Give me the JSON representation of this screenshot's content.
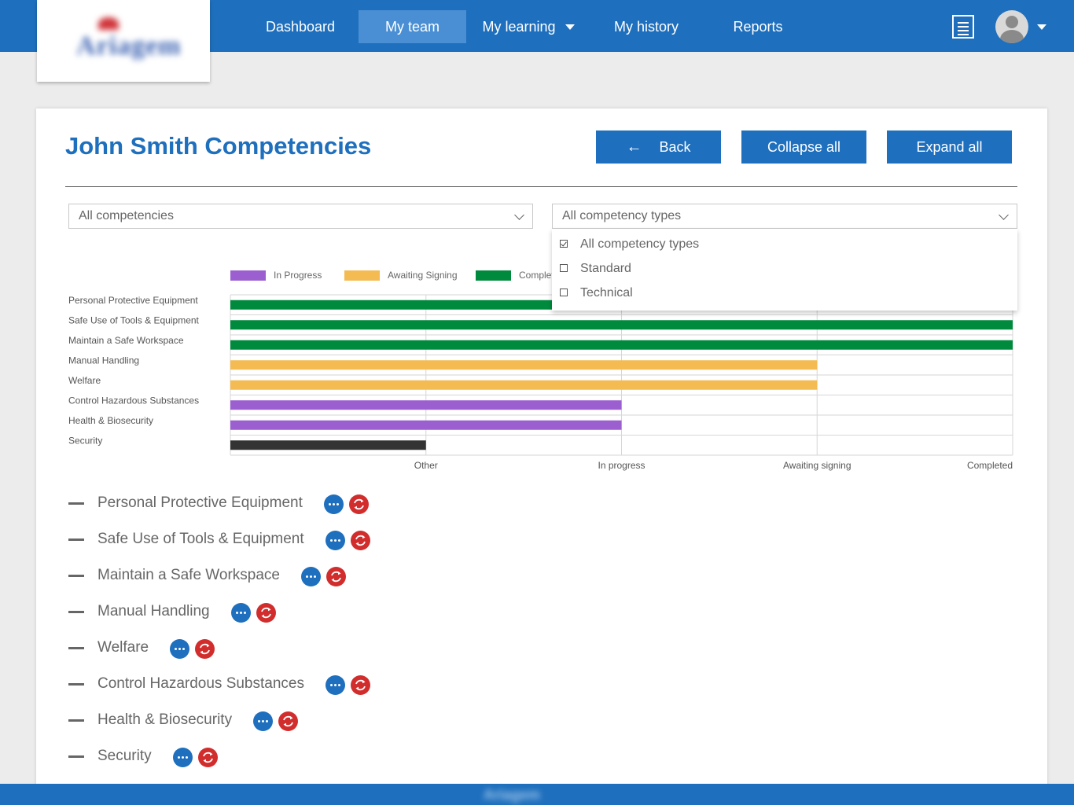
{
  "logo": {
    "brand": "Ariagem"
  },
  "nav": {
    "items": [
      {
        "label": "Dashboard"
      },
      {
        "label": "My team"
      },
      {
        "label": "My learning"
      },
      {
        "label": "My history"
      },
      {
        "label": "Reports"
      }
    ],
    "active": "My team"
  },
  "header": {
    "title": "John Smith Competencies",
    "back_label": "Back",
    "collapse_label": "Collapse all",
    "expand_label": "Expand all"
  },
  "filters": {
    "competencies": {
      "value": "All competencies"
    },
    "types": {
      "value": "All competency types",
      "options": [
        {
          "label": "All competency types",
          "checked": true
        },
        {
          "label": "Standard",
          "checked": false
        },
        {
          "label": "Technical",
          "checked": false
        }
      ]
    }
  },
  "chart_data": {
    "type": "bar",
    "orientation": "horizontal",
    "legend": [
      {
        "name": "In Progress",
        "color": "#9b5fcf"
      },
      {
        "name": "Awaiting Signing",
        "color": "#f4bb52"
      },
      {
        "name": "Completed",
        "color": "#008a3e"
      }
    ],
    "legend_placement": "top",
    "categories": [
      "Personal Protective Equipment",
      "Safe Use of Tools & Equipment",
      "Maintain a Safe Workspace",
      "Manual Handling",
      "Welfare",
      "Control Hazardous Substances",
      "Health & Biosecurity",
      "Security"
    ],
    "values": [
      4,
      4,
      4,
      3,
      3,
      2,
      2,
      1
    ],
    "bar_colors": [
      "#008a3e",
      "#008a3e",
      "#008a3e",
      "#f4bb52",
      "#f4bb52",
      "#9b5fcf",
      "#9b5fcf",
      "#333333"
    ],
    "x_ticks": [
      "Other",
      "In progress",
      "Awaiting signing",
      "Completed"
    ],
    "xlim": [
      0,
      4
    ],
    "grid": true
  },
  "competencies": [
    {
      "name": "Personal Protective Equipment"
    },
    {
      "name": "Safe Use of Tools & Equipment"
    },
    {
      "name": "Maintain a Safe Workspace"
    },
    {
      "name": "Manual Handling"
    },
    {
      "name": "Welfare"
    },
    {
      "name": "Control Hazardous Substances"
    },
    {
      "name": "Health & Biosecurity"
    },
    {
      "name": "Security"
    }
  ],
  "footer": {
    "brand": "Ariagem"
  }
}
